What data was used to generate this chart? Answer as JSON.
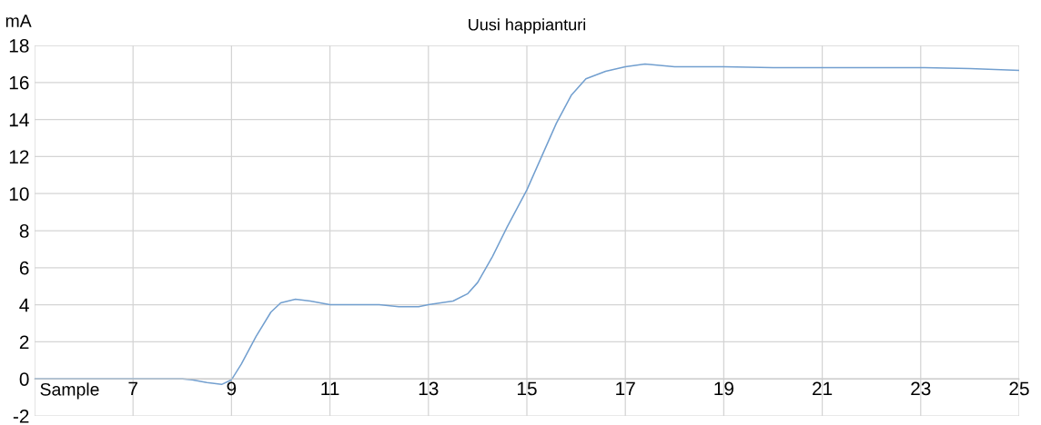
{
  "chart_data": {
    "type": "line",
    "title": "Uusi happianturi",
    "xlabel": "Sample",
    "ylabel": "mA",
    "xlim": [
      5,
      25
    ],
    "xticks": [
      {
        "value": 5,
        "label": null
      },
      7,
      9,
      11,
      13,
      15,
      17,
      19,
      21,
      23,
      25
    ],
    "ylim": [
      -2,
      18
    ],
    "yticks": [
      -2,
      0,
      2,
      4,
      6,
      8,
      10,
      12,
      14,
      16,
      18
    ],
    "grid": true,
    "marker": "none",
    "line_style": "solid",
    "series": [
      {
        "color": "#729fcf",
        "x": [
          5,
          6,
          7,
          8,
          8.2,
          8.5,
          8.8,
          9,
          9.2,
          9.5,
          9.8,
          10,
          10.3,
          10.6,
          11,
          11.5,
          12,
          12.4,
          12.8,
          13,
          13.5,
          13.8,
          14,
          14.3,
          14.6,
          15,
          15.3,
          15.6,
          15.9,
          16.2,
          16.6,
          17,
          17.4,
          17.8,
          18,
          19,
          20,
          21,
          22,
          23,
          24,
          25
        ],
        "values": [
          0,
          0,
          0,
          0,
          -0.05,
          -0.2,
          -0.3,
          -0.05,
          0.8,
          2.3,
          3.6,
          4.1,
          4.3,
          4.2,
          4.0,
          4.0,
          4.0,
          3.9,
          3.9,
          4.0,
          4.2,
          4.6,
          5.2,
          6.6,
          8.2,
          10.2,
          12.0,
          13.8,
          15.3,
          16.2,
          16.6,
          16.85,
          17.0,
          16.9,
          16.85,
          16.85,
          16.8,
          16.8,
          16.8,
          16.8,
          16.75,
          16.65
        ]
      }
    ]
  }
}
